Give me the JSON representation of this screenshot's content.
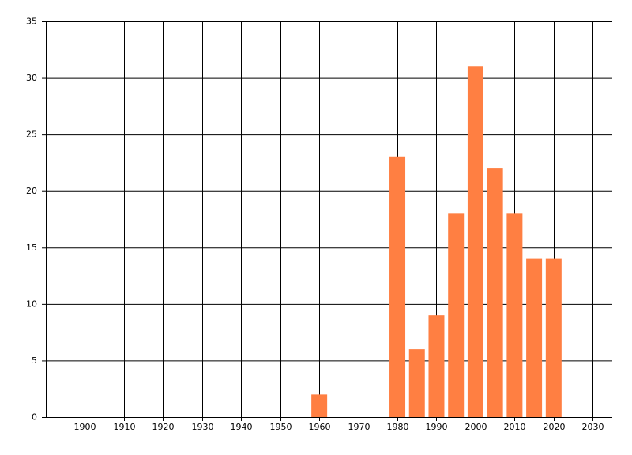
{
  "chart_data": {
    "type": "bar",
    "x": [
      1960,
      1980,
      1985,
      1990,
      1995,
      2000,
      2005,
      2010,
      2015,
      2020
    ],
    "values": [
      2,
      23,
      6,
      9,
      18,
      31,
      22,
      18,
      14,
      14
    ],
    "color": "#ff7f42",
    "xlim": [
      1890,
      2035
    ],
    "xticks": [
      1900,
      1910,
      1920,
      1930,
      1940,
      1950,
      1960,
      1970,
      1980,
      1990,
      2000,
      2010,
      2020,
      2030
    ],
    "ylim": [
      0,
      35
    ],
    "yticks": [
      0,
      5,
      10,
      15,
      20,
      25,
      30,
      35
    ],
    "grid": true
  }
}
